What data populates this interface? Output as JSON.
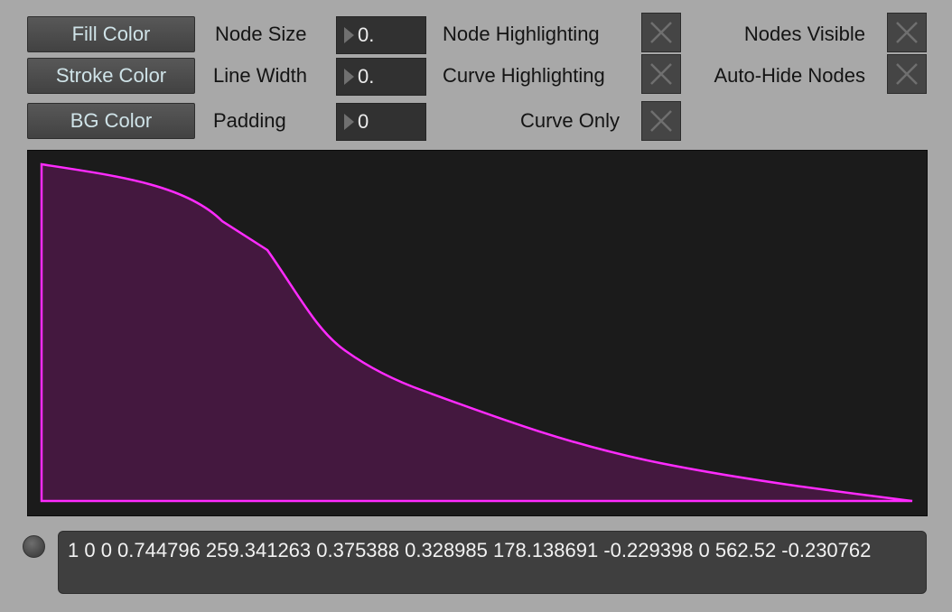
{
  "controls": {
    "fill_color_label": "Fill Color",
    "stroke_color_label": "Stroke Color",
    "bg_color_label": "BG Color",
    "node_size_label": "Node Size",
    "node_size_value": "0.",
    "line_width_label": "Line Width",
    "line_width_value": "0.",
    "padding_label": "Padding",
    "padding_value": "0",
    "node_highlighting_label": "Node Highlighting",
    "curve_highlighting_label": "Curve Highlighting",
    "curve_only_label": "Curve Only",
    "nodes_visible_label": "Nodes Visible",
    "auto_hide_nodes_label": "Auto-Hide Nodes",
    "toggle_states": {
      "node_highlighting": false,
      "curve_highlighting": false,
      "curve_only": false,
      "nodes_visible": false,
      "auto_hide_nodes": false
    }
  },
  "curve": {
    "colors": {
      "background": "#1b1b1b",
      "stroke": "#ff2bff",
      "fill": "#44183f"
    }
  },
  "message": {
    "text": "1 0 0 0.744796 259.341263 0.375388 0.328985 178.138691 -0.229398 0 562.52 -0.230762"
  }
}
